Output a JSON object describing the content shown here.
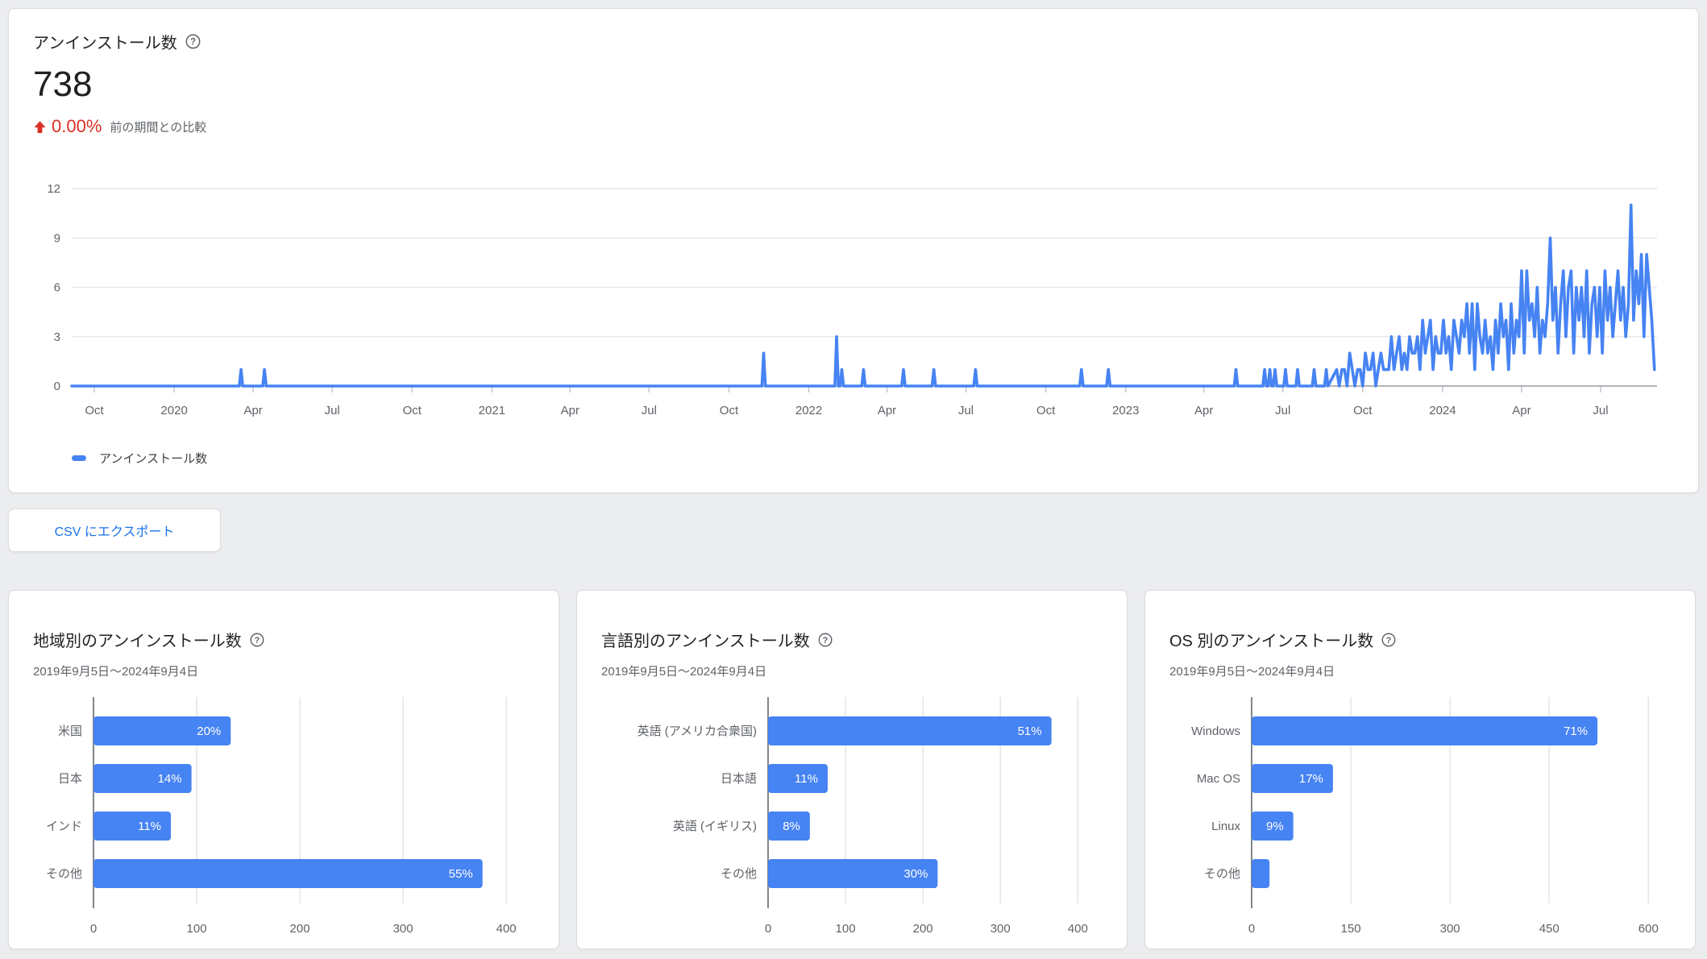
{
  "colors": {
    "page_bg": "#ecedef",
    "chart_blue": "#4683f3",
    "link_blue": "#1a73e8",
    "delta_red": "#d93025",
    "grid_gray": "#e8e8e8",
    "axis_gray": "#80868b",
    "text_secondary": "#5f6368"
  },
  "header": {
    "title": "アンインストール数",
    "value": "738",
    "delta_percent": "0.00%",
    "delta_caption": "前の期間との比較"
  },
  "legend": {
    "label": "アンインストール数"
  },
  "export_button": {
    "label": "CSV にエクスポート"
  },
  "chart_data": [
    {
      "type": "line",
      "name": "uninstalls-over-time",
      "title": "アンインストール数",
      "start_date": "2019-09-05",
      "end_date": "2024-09-04",
      "y_ticks": [
        0,
        3,
        6,
        9,
        12
      ],
      "y_max": 12,
      "x_ticks": [
        {
          "label": "Oct",
          "date": "2019-10-01"
        },
        {
          "label": "2020",
          "date": "2020-01-01"
        },
        {
          "label": "Apr",
          "date": "2020-04-01"
        },
        {
          "label": "Jul",
          "date": "2020-07-01"
        },
        {
          "label": "Oct",
          "date": "2020-10-01"
        },
        {
          "label": "2021",
          "date": "2021-01-01"
        },
        {
          "label": "Apr",
          "date": "2021-04-01"
        },
        {
          "label": "Jul",
          "date": "2021-07-01"
        },
        {
          "label": "Oct",
          "date": "2021-10-01"
        },
        {
          "label": "2022",
          "date": "2022-01-01"
        },
        {
          "label": "Apr",
          "date": "2022-04-01"
        },
        {
          "label": "Jul",
          "date": "2022-07-01"
        },
        {
          "label": "Oct",
          "date": "2022-10-01"
        },
        {
          "label": "2023",
          "date": "2023-01-01"
        },
        {
          "label": "Apr",
          "date": "2023-04-01"
        },
        {
          "label": "Jul",
          "date": "2023-07-01"
        },
        {
          "label": "Oct",
          "date": "2023-10-01"
        },
        {
          "label": "2024",
          "date": "2024-01-01"
        },
        {
          "label": "Apr",
          "date": "2024-04-01"
        },
        {
          "label": "Jul",
          "date": "2024-07-01"
        }
      ],
      "spikes": [
        {
          "date": "2020-03-18",
          "value": 1
        },
        {
          "date": "2020-04-14",
          "value": 1
        },
        {
          "date": "2021-11-10",
          "value": 2
        },
        {
          "date": "2022-02-02",
          "value": 3
        },
        {
          "date": "2022-02-08",
          "value": 1
        },
        {
          "date": "2022-03-05",
          "value": 1
        },
        {
          "date": "2022-04-20",
          "value": 1
        },
        {
          "date": "2022-05-25",
          "value": 1
        },
        {
          "date": "2022-07-12",
          "value": 1
        },
        {
          "date": "2022-11-11",
          "value": 1
        },
        {
          "date": "2022-12-12",
          "value": 1
        },
        {
          "date": "2023-05-08",
          "value": 1
        },
        {
          "date": "2023-06-10",
          "value": 1
        },
        {
          "date": "2023-06-16",
          "value": 1
        },
        {
          "date": "2023-06-22",
          "value": 1
        },
        {
          "date": "2023-07-04",
          "value": 1
        },
        {
          "date": "2023-07-18",
          "value": 1
        },
        {
          "date": "2023-08-06",
          "value": 1
        },
        {
          "date": "2023-08-20",
          "value": 1
        }
      ],
      "dense_series": {
        "start_date": "2023-09-01",
        "step_days": 3,
        "values": [
          1,
          0,
          1,
          1,
          0,
          2,
          1,
          0,
          1,
          1,
          0,
          2,
          1,
          1,
          2,
          0,
          1,
          2,
          1,
          1,
          1,
          3,
          1,
          2,
          3,
          1,
          2,
          1,
          3,
          2,
          2,
          3,
          1,
          4,
          2,
          3,
          4,
          1,
          3,
          2,
          2,
          4,
          2,
          3,
          1,
          4,
          3,
          2,
          4,
          3,
          5,
          2,
          5,
          1,
          5,
          3,
          2,
          4,
          2,
          3,
          1,
          4,
          2,
          5,
          3,
          4,
          1,
          5,
          2,
          4,
          3,
          7,
          2,
          7,
          4,
          5,
          3,
          6,
          2,
          4,
          3,
          5,
          9,
          4,
          6,
          2,
          5,
          7,
          3,
          6,
          7,
          2,
          6,
          4,
          6,
          3,
          7,
          2,
          5,
          6,
          3,
          6,
          2,
          7,
          4,
          6,
          3,
          5,
          7,
          4,
          6,
          3,
          5,
          11,
          4,
          7,
          5,
          8,
          3,
          8,
          6,
          4,
          1
        ]
      }
    },
    {
      "type": "bar",
      "name": "uninstalls-by-region",
      "title": "地域別のアンインストール数",
      "subtitle": "2019年9月5日〜2024年9月4日",
      "categories": [
        "米国",
        "日本",
        "インド",
        "その他"
      ],
      "values": [
        133,
        95,
        75,
        377
      ],
      "labels": [
        "20%",
        "14%",
        "11%",
        "55%"
      ],
      "x_ticks": [
        0,
        100,
        200,
        300,
        400
      ],
      "axis_max": 428,
      "label_col": 75
    },
    {
      "type": "bar",
      "name": "uninstalls-by-language",
      "title": "言語別のアンインストール数",
      "subtitle": "2019年9月5日〜2024年9月4日",
      "categories": [
        "英語 (アメリカ合衆国)",
        "日本語",
        "英語 (イギリス)",
        "その他"
      ],
      "values": [
        366,
        77,
        54,
        219
      ],
      "labels": [
        "51%",
        "11%",
        "8%",
        "30%"
      ],
      "x_ticks": [
        0,
        100,
        200,
        300,
        400
      ],
      "axis_max": 433,
      "label_col": 207
    },
    {
      "type": "bar",
      "name": "uninstalls-by-os",
      "title": "OS 別のアンインストール数",
      "subtitle": "2019年9月5日〜2024年9月4日",
      "categories": [
        "Windows",
        "Mac OS",
        "Linux",
        "その他"
      ],
      "values": [
        523,
        123,
        63,
        27
      ],
      "labels": [
        "71%",
        "17%",
        "9%",
        ""
      ],
      "x_ticks": [
        0,
        150,
        300,
        450,
        600
      ],
      "axis_max": 635,
      "label_col": 102
    }
  ]
}
